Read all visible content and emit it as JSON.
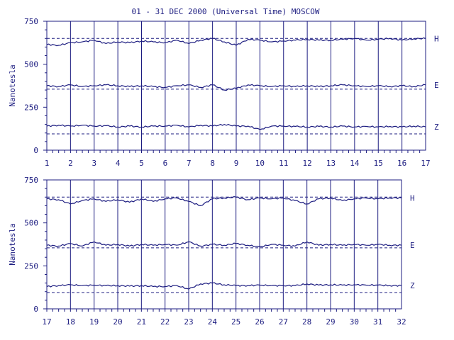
{
  "title": "01 - 31 DEC 2000 (Universal Time) MOSCOW",
  "colors": {
    "ink": "#1c1c80",
    "background": "#ffffff"
  },
  "chart_data": [
    {
      "type": "line",
      "title": "01 - 31 DEC 2000 (Universal Time) MOSCOW",
      "ylabel": "Nanotesla",
      "xlabel": "",
      "xlim": [
        1,
        17
      ],
      "ylim": [
        0,
        750
      ],
      "yticks": [
        0,
        250,
        500,
        750
      ],
      "xticks": [
        1,
        2,
        3,
        4,
        5,
        6,
        7,
        8,
        9,
        10,
        11,
        12,
        13,
        14,
        15,
        16,
        17
      ],
      "grid": "vertical day lines",
      "baselines": {
        "H": 650,
        "E": 355,
        "Z": 95
      },
      "series": [
        {
          "name": "H",
          "x": [
            1,
            1.5,
            2,
            2.5,
            3,
            3.5,
            4,
            4.5,
            5,
            5.5,
            6,
            6.5,
            7,
            7.5,
            8,
            8.5,
            9,
            9.5,
            10,
            10.5,
            11,
            11.5,
            12,
            12.5,
            13,
            13.5,
            14,
            14.5,
            15,
            15.5,
            16,
            16.5,
            17
          ],
          "values": [
            615,
            610,
            625,
            630,
            640,
            620,
            630,
            625,
            635,
            630,
            625,
            640,
            620,
            640,
            650,
            630,
            610,
            645,
            640,
            630,
            635,
            640,
            645,
            640,
            640,
            645,
            650,
            640,
            645,
            650,
            640,
            648,
            650
          ]
        },
        {
          "name": "E",
          "x": [
            1,
            1.5,
            2,
            2.5,
            3,
            3.5,
            4,
            4.5,
            5,
            5.5,
            6,
            6.5,
            7,
            7.5,
            8,
            8.5,
            9,
            9.5,
            10,
            10.5,
            11,
            11.5,
            12,
            12.5,
            13,
            13.5,
            14,
            14.5,
            15,
            15.5,
            16,
            16.5,
            17
          ],
          "values": [
            375,
            370,
            380,
            370,
            375,
            380,
            375,
            370,
            375,
            370,
            365,
            375,
            380,
            365,
            380,
            350,
            360,
            380,
            375,
            370,
            375,
            370,
            375,
            370,
            375,
            380,
            375,
            370,
            375,
            370,
            375,
            370,
            380
          ]
        },
        {
          "name": "Z",
          "x": [
            1,
            1.5,
            2,
            2.5,
            3,
            3.5,
            4,
            4.5,
            5,
            5.5,
            6,
            6.5,
            7,
            7.5,
            8,
            8.5,
            9,
            9.5,
            10,
            10.5,
            11,
            11.5,
            12,
            12.5,
            13,
            13.5,
            14,
            14.5,
            15,
            15.5,
            16,
            16.5,
            17
          ],
          "values": [
            140,
            145,
            140,
            145,
            140,
            142,
            135,
            140,
            135,
            140,
            140,
            145,
            135,
            145,
            140,
            150,
            140,
            140,
            120,
            140,
            140,
            138,
            135,
            138,
            135,
            140,
            135,
            138,
            135,
            138,
            135,
            140,
            135
          ]
        }
      ]
    },
    {
      "type": "line",
      "ylabel": "Nanotesla",
      "xlabel": "",
      "xlim": [
        17,
        32
      ],
      "ylim": [
        0,
        750
      ],
      "yticks": [
        0,
        250,
        500,
        750
      ],
      "xticks": [
        17,
        18,
        19,
        20,
        21,
        22,
        23,
        24,
        25,
        26,
        27,
        28,
        29,
        30,
        31,
        32
      ],
      "grid": "vertical day lines",
      "baselines": {
        "H": 650,
        "E": 355,
        "Z": 95
      },
      "series": [
        {
          "name": "H",
          "x": [
            17,
            17.5,
            18,
            18.5,
            19,
            19.5,
            20,
            20.5,
            21,
            21.5,
            22,
            22.5,
            23,
            23.5,
            24,
            24.5,
            25,
            25.5,
            26,
            26.5,
            27,
            27.5,
            28,
            28.5,
            29,
            29.5,
            30,
            30.5,
            31,
            31.5,
            32
          ],
          "values": [
            640,
            635,
            610,
            630,
            640,
            625,
            635,
            620,
            640,
            625,
            640,
            645,
            625,
            600,
            640,
            645,
            650,
            635,
            645,
            640,
            645,
            630,
            610,
            640,
            645,
            630,
            640,
            645,
            640,
            645,
            645
          ]
        },
        {
          "name": "E",
          "x": [
            17,
            17.5,
            18,
            18.5,
            19,
            19.5,
            20,
            20.5,
            21,
            21.5,
            22,
            22.5,
            23,
            23.5,
            24,
            24.5,
            25,
            25.5,
            26,
            26.5,
            27,
            27.5,
            28,
            28.5,
            29,
            29.5,
            30,
            30.5,
            31,
            31.5,
            32
          ],
          "values": [
            370,
            365,
            380,
            365,
            390,
            370,
            375,
            365,
            375,
            370,
            375,
            370,
            390,
            365,
            375,
            370,
            380,
            370,
            360,
            375,
            370,
            365,
            390,
            370,
            375,
            370,
            375,
            370,
            375,
            370,
            370
          ]
        },
        {
          "name": "Z",
          "x": [
            17,
            17.5,
            18,
            18.5,
            19,
            19.5,
            20,
            20.5,
            21,
            21.5,
            22,
            22.5,
            23,
            23.5,
            24,
            24.5,
            25,
            25.5,
            26,
            26.5,
            27,
            27.5,
            28,
            28.5,
            29,
            29.5,
            30,
            30.5,
            31,
            31.5,
            32
          ],
          "values": [
            130,
            135,
            140,
            135,
            138,
            135,
            135,
            132,
            135,
            130,
            130,
            135,
            115,
            145,
            150,
            140,
            135,
            135,
            138,
            135,
            135,
            135,
            145,
            138,
            140,
            138,
            140,
            138,
            138,
            135,
            135
          ]
        }
      ]
    }
  ]
}
